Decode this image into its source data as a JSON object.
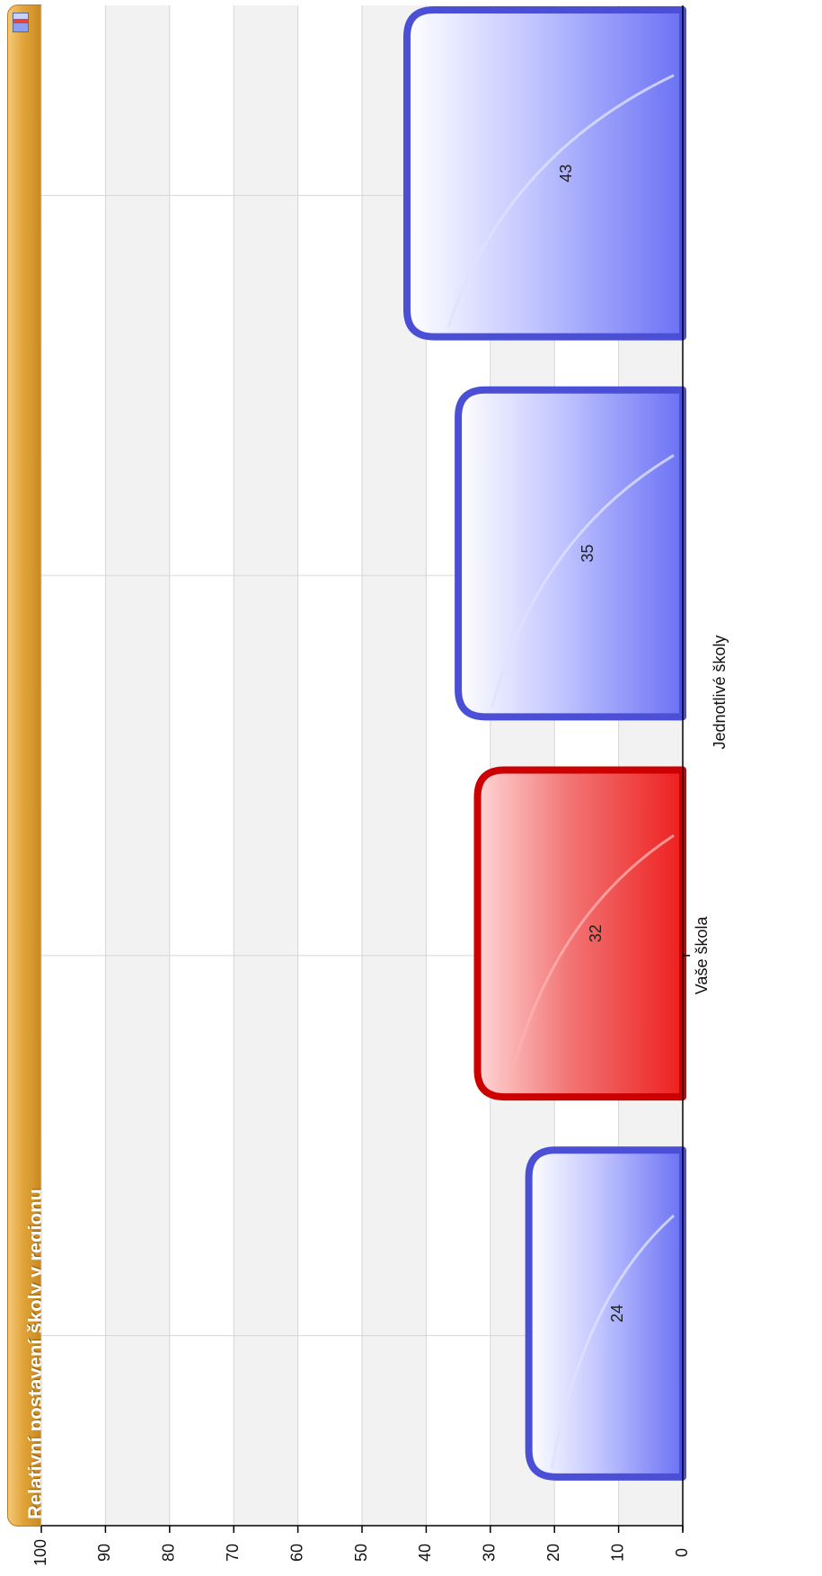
{
  "window": {
    "title": "Relativní postavení školy v regionu",
    "icon": "chart-icon"
  },
  "colors": {
    "highlight": "#e21a1a",
    "others": "#5c63e6",
    "title_bar": "#e2a53c"
  },
  "chart_data": {
    "type": "bar",
    "orientation": "vertical-rotated",
    "title": "Relativní postavení školy v regionu",
    "xlabel": "Jednotlivé školy",
    "ylabel": "",
    "ylim": [
      0,
      100
    ],
    "yticks": [
      0,
      10,
      20,
      30,
      40,
      50,
      60,
      70,
      80,
      90,
      100
    ],
    "grid": true,
    "categories": [
      "",
      "Vaše škola",
      "",
      ""
    ],
    "values": [
      24,
      32,
      35,
      43
    ],
    "highlight_index": 1,
    "data_labels": [
      "24",
      "32",
      "35",
      "43"
    ]
  }
}
